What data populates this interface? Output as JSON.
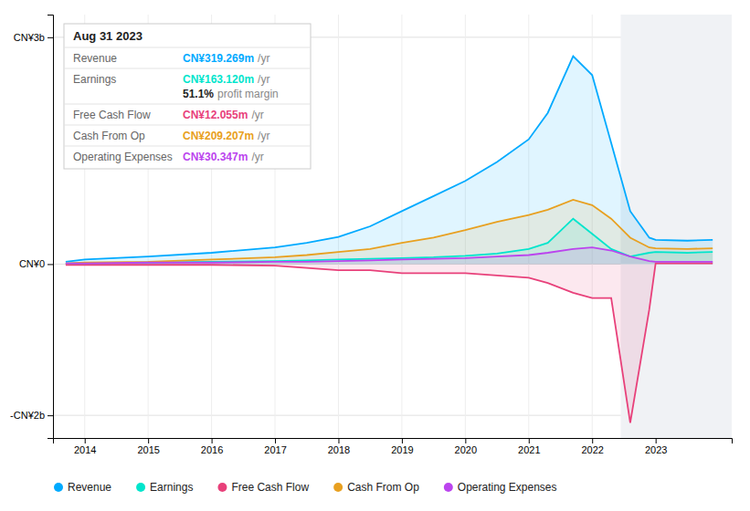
{
  "chart_data": {
    "type": "line",
    "x": [
      2013.7,
      2014.0,
      2015.0,
      2016.0,
      2017.0,
      2017.5,
      2018.0,
      2018.5,
      2019.0,
      2019.5,
      2020.0,
      2020.5,
      2021.0,
      2021.3,
      2021.7,
      2022.0,
      2022.3,
      2022.6,
      2022.9,
      2023.0,
      2023.5,
      2023.9
    ],
    "series": [
      {
        "name": "Revenue",
        "color": "#00aaff",
        "values": [
          0.03,
          0.06,
          0.1,
          0.15,
          0.22,
          0.28,
          0.36,
          0.5,
          0.7,
          0.9,
          1.1,
          1.35,
          1.65,
          2.0,
          2.75,
          2.5,
          1.6,
          0.7,
          0.35,
          0.32,
          0.31,
          0.32
        ]
      },
      {
        "name": "Earnings",
        "color": "#00e5cc",
        "values": [
          0.01,
          0.01,
          0.02,
          0.03,
          0.04,
          0.05,
          0.06,
          0.07,
          0.08,
          0.09,
          0.11,
          0.14,
          0.2,
          0.28,
          0.6,
          0.4,
          0.2,
          0.1,
          0.15,
          0.16,
          0.15,
          0.16
        ]
      },
      {
        "name": "Free Cash Flow",
        "color": "#e8407a",
        "values": [
          -0.01,
          -0.01,
          -0.01,
          -0.01,
          -0.02,
          -0.05,
          -0.08,
          -0.08,
          -0.12,
          -0.12,
          -0.12,
          -0.15,
          -0.18,
          -0.25,
          -0.38,
          -0.45,
          -0.45,
          -2.1,
          -0.6,
          0.01,
          0.01,
          0.01
        ]
      },
      {
        "name": "Cash From Op",
        "color": "#e8a020",
        "values": [
          0.01,
          0.02,
          0.03,
          0.06,
          0.09,
          0.12,
          0.16,
          0.2,
          0.28,
          0.35,
          0.45,
          0.56,
          0.65,
          0.72,
          0.85,
          0.78,
          0.6,
          0.35,
          0.22,
          0.21,
          0.2,
          0.21
        ]
      },
      {
        "name": "Operating Expenses",
        "color": "#bb44ee",
        "values": [
          0.01,
          0.01,
          0.02,
          0.02,
          0.03,
          0.03,
          0.04,
          0.05,
          0.06,
          0.07,
          0.08,
          0.1,
          0.12,
          0.15,
          0.2,
          0.22,
          0.18,
          0.1,
          0.04,
          0.03,
          0.03,
          0.03
        ]
      }
    ],
    "xlim": [
      2013.5,
      2024.2
    ],
    "xticks": [
      2014,
      2015,
      2016,
      2017,
      2018,
      2019,
      2020,
      2021,
      2022,
      2023
    ],
    "ylim": [
      -2.3,
      3.3
    ],
    "yticks": [
      {
        "value": -2,
        "label": "-CN¥2b"
      },
      {
        "value": 0,
        "label": "CN¥0"
      },
      {
        "value": 3,
        "label": "CN¥3b"
      }
    ],
    "grid": true,
    "legend": "bottom",
    "annotations": [
      {
        "type": "info_box",
        "title": "Aug 31 2023",
        "rows": [
          {
            "label": "Revenue",
            "text": "CN¥319.269m",
            "unit": "/yr"
          },
          {
            "label": "Earnings",
            "text": "CN¥163.120m",
            "unit": "/yr",
            "note_bold": "51.1%",
            "note": "profit margin"
          },
          {
            "label": "Free Cash Flow",
            "text": "CN¥12.055m",
            "unit": "/yr"
          },
          {
            "label": "Cash From Op",
            "text": "CN¥209.207m",
            "unit": "/yr"
          },
          {
            "label": "Operating Expenses",
            "text": "CN¥30.347m",
            "unit": "/yr"
          }
        ]
      },
      {
        "type": "shade",
        "x": 2022.45
      }
    ]
  }
}
